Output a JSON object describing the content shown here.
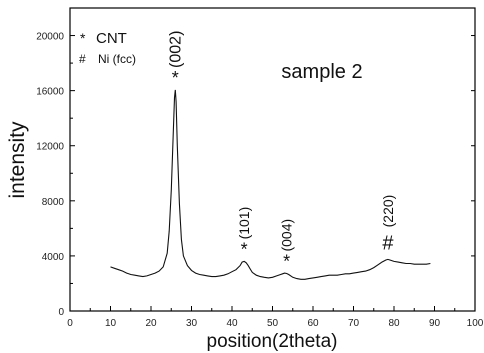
{
  "chart_data": {
    "type": "line",
    "title": "sample 2",
    "xlabel": "position(2theta)",
    "ylabel": "intensity",
    "xlim": [
      0,
      100
    ],
    "ylim": [
      0,
      22000
    ],
    "x_ticks": [
      "0",
      "10",
      "20",
      "30",
      "40",
      "50",
      "60",
      "70",
      "80",
      "90",
      "100"
    ],
    "y_ticks": [
      "0",
      "4000",
      "8000",
      "12000",
      "16000",
      "20000"
    ],
    "legend": {
      "position": "top-left",
      "entries": [
        {
          "symbol": "*",
          "label": "CNT"
        },
        {
          "symbol": "#",
          "label": "Ni  (fcc)"
        }
      ]
    },
    "peak_annotations": [
      {
        "symbol": "*",
        "label": "(002)",
        "x": 26.0
      },
      {
        "symbol": "*",
        "label": "(101)",
        "x": 43.0
      },
      {
        "symbol": "*",
        "label": "(004)",
        "x": 53.5
      },
      {
        "symbol": "#",
        "label": "(220)",
        "x": 78.5
      }
    ],
    "series": [
      {
        "x": [
          10,
          11,
          12,
          13,
          14,
          15,
          16,
          17,
          18,
          19,
          20,
          21,
          22,
          23,
          24,
          24.5,
          25,
          25.5,
          25.8,
          26.0,
          26.2,
          26.5,
          27,
          27.5,
          28,
          29,
          30,
          31,
          32,
          33,
          34,
          35,
          36,
          37,
          38,
          39,
          40,
          41,
          42,
          42.5,
          43,
          43.5,
          44,
          44.5,
          45,
          46,
          47,
          48,
          49,
          50,
          51,
          52,
          52.5,
          53,
          53.5,
          54,
          55,
          56,
          57,
          58,
          59,
          60,
          61,
          62,
          63,
          64,
          65,
          66,
          67,
          68,
          69,
          70,
          71,
          72,
          73,
          74,
          75,
          76,
          77,
          78,
          78.5,
          79,
          80,
          81,
          82,
          83,
          84,
          85,
          86,
          87,
          88,
          89
        ],
        "y": [
          3200,
          3100,
          3000,
          2900,
          2750,
          2650,
          2600,
          2550,
          2500,
          2550,
          2650,
          2750,
          2900,
          3200,
          4200,
          5800,
          8800,
          13000,
          15500,
          16050,
          15200,
          12000,
          7800,
          5200,
          4000,
          3300,
          2950,
          2750,
          2650,
          2600,
          2550,
          2500,
          2500,
          2550,
          2600,
          2700,
          2850,
          3000,
          3300,
          3550,
          3600,
          3500,
          3300,
          3050,
          2800,
          2600,
          2500,
          2450,
          2400,
          2450,
          2550,
          2650,
          2700,
          2750,
          2720,
          2650,
          2450,
          2350,
          2300,
          2300,
          2350,
          2400,
          2450,
          2500,
          2550,
          2600,
          2600,
          2600,
          2650,
          2700,
          2700,
          2750,
          2800,
          2850,
          2900,
          3000,
          3150,
          3350,
          3550,
          3700,
          3750,
          3700,
          3600,
          3550,
          3500,
          3450,
          3450,
          3400,
          3400,
          3400,
          3400,
          3450
        ]
      }
    ]
  }
}
